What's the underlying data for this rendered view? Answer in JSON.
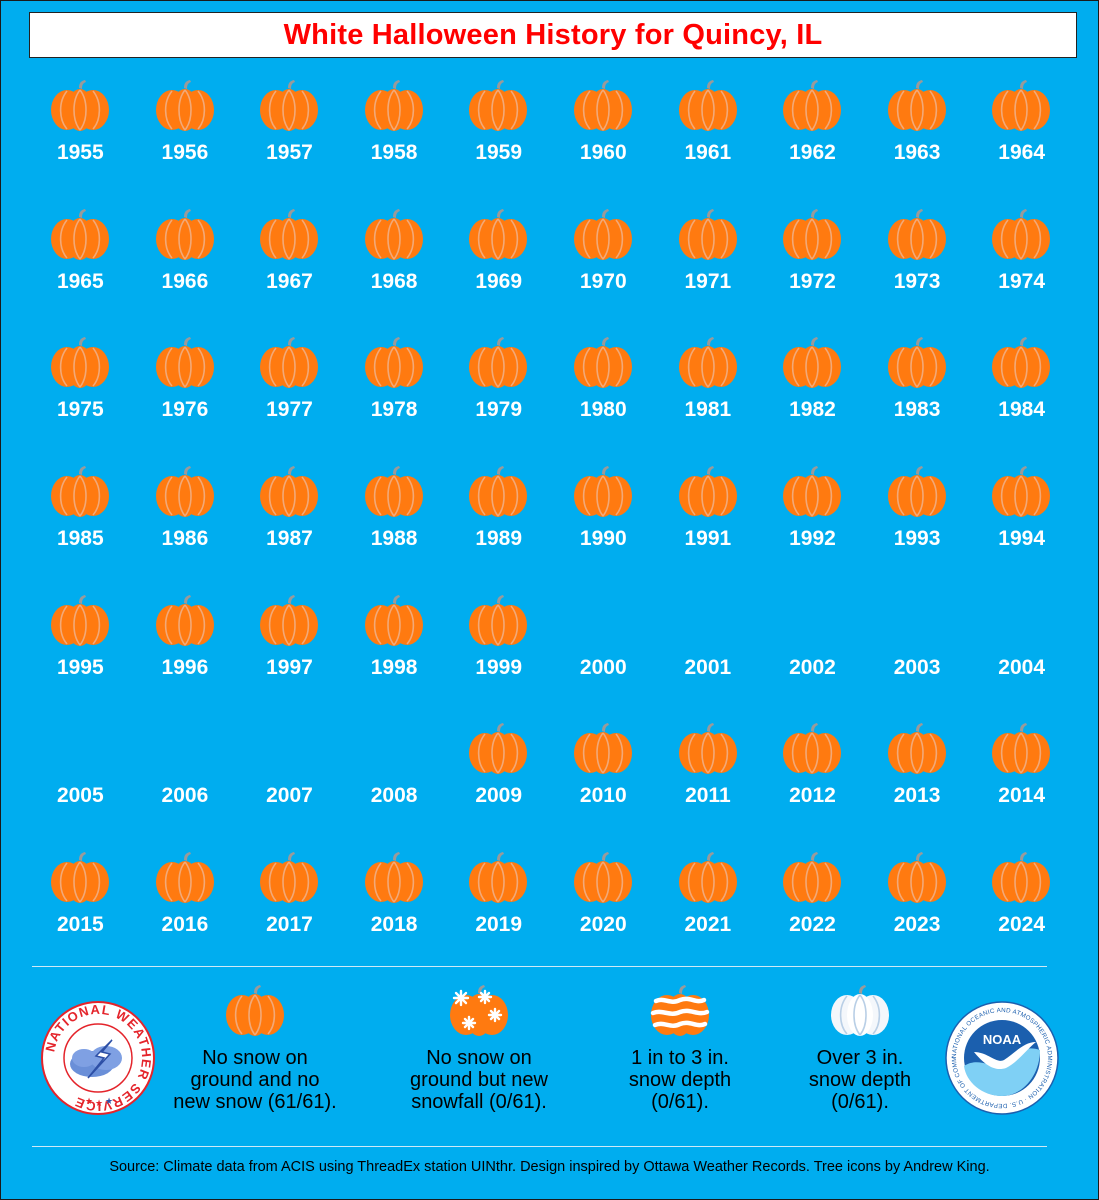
{
  "title": "White Halloween History for Quincy, IL",
  "years": [
    {
      "year": "1955",
      "pumpkin": true
    },
    {
      "year": "1956",
      "pumpkin": true
    },
    {
      "year": "1957",
      "pumpkin": true
    },
    {
      "year": "1958",
      "pumpkin": true
    },
    {
      "year": "1959",
      "pumpkin": true
    },
    {
      "year": "1960",
      "pumpkin": true
    },
    {
      "year": "1961",
      "pumpkin": true
    },
    {
      "year": "1962",
      "pumpkin": true
    },
    {
      "year": "1963",
      "pumpkin": true
    },
    {
      "year": "1964",
      "pumpkin": true
    },
    {
      "year": "1965",
      "pumpkin": true
    },
    {
      "year": "1966",
      "pumpkin": true
    },
    {
      "year": "1967",
      "pumpkin": true
    },
    {
      "year": "1968",
      "pumpkin": true
    },
    {
      "year": "1969",
      "pumpkin": true
    },
    {
      "year": "1970",
      "pumpkin": true
    },
    {
      "year": "1971",
      "pumpkin": true
    },
    {
      "year": "1972",
      "pumpkin": true
    },
    {
      "year": "1973",
      "pumpkin": true
    },
    {
      "year": "1974",
      "pumpkin": true
    },
    {
      "year": "1975",
      "pumpkin": true
    },
    {
      "year": "1976",
      "pumpkin": true
    },
    {
      "year": "1977",
      "pumpkin": true
    },
    {
      "year": "1978",
      "pumpkin": true
    },
    {
      "year": "1979",
      "pumpkin": true
    },
    {
      "year": "1980",
      "pumpkin": true
    },
    {
      "year": "1981",
      "pumpkin": true
    },
    {
      "year": "1982",
      "pumpkin": true
    },
    {
      "year": "1983",
      "pumpkin": true
    },
    {
      "year": "1984",
      "pumpkin": true
    },
    {
      "year": "1985",
      "pumpkin": true
    },
    {
      "year": "1986",
      "pumpkin": true
    },
    {
      "year": "1987",
      "pumpkin": true
    },
    {
      "year": "1988",
      "pumpkin": true
    },
    {
      "year": "1989",
      "pumpkin": true
    },
    {
      "year": "1990",
      "pumpkin": true
    },
    {
      "year": "1991",
      "pumpkin": true
    },
    {
      "year": "1992",
      "pumpkin": true
    },
    {
      "year": "1993",
      "pumpkin": true
    },
    {
      "year": "1994",
      "pumpkin": true
    },
    {
      "year": "1995",
      "pumpkin": true
    },
    {
      "year": "1996",
      "pumpkin": true
    },
    {
      "year": "1997",
      "pumpkin": true
    },
    {
      "year": "1998",
      "pumpkin": true
    },
    {
      "year": "1999",
      "pumpkin": true
    },
    {
      "year": "2000",
      "pumpkin": false
    },
    {
      "year": "2001",
      "pumpkin": false
    },
    {
      "year": "2002",
      "pumpkin": false
    },
    {
      "year": "2003",
      "pumpkin": false
    },
    {
      "year": "2004",
      "pumpkin": false
    },
    {
      "year": "2005",
      "pumpkin": false
    },
    {
      "year": "2006",
      "pumpkin": false
    },
    {
      "year": "2007",
      "pumpkin": false
    },
    {
      "year": "2008",
      "pumpkin": false
    },
    {
      "year": "2009",
      "pumpkin": true
    },
    {
      "year": "2010",
      "pumpkin": true
    },
    {
      "year": "2011",
      "pumpkin": true
    },
    {
      "year": "2012",
      "pumpkin": true
    },
    {
      "year": "2013",
      "pumpkin": true
    },
    {
      "year": "2014",
      "pumpkin": true
    },
    {
      "year": "2015",
      "pumpkin": true
    },
    {
      "year": "2016",
      "pumpkin": true
    },
    {
      "year": "2017",
      "pumpkin": true
    },
    {
      "year": "2018",
      "pumpkin": true
    },
    {
      "year": "2019",
      "pumpkin": true
    },
    {
      "year": "2020",
      "pumpkin": true
    },
    {
      "year": "2021",
      "pumpkin": true
    },
    {
      "year": "2022",
      "pumpkin": true
    },
    {
      "year": "2023",
      "pumpkin": true
    },
    {
      "year": "2024",
      "pumpkin": true
    }
  ],
  "legend": [
    {
      "icon": "pumpkin-icon",
      "line1": "No snow on",
      "line2": "ground and no",
      "line3": "new snow (61/61)."
    },
    {
      "icon": "snowflake-pumpkin-icon",
      "line1": "No snow on",
      "line2": "ground but new",
      "line3": "snowfall (0/61)."
    },
    {
      "icon": "striped-snow-pumpkin-icon",
      "line1": "1 in to 3 in.",
      "line2": "snow depth",
      "line3": "(0/61)."
    },
    {
      "icon": "white-pumpkin-icon",
      "line1": "Over 3 in.",
      "line2": "snow depth",
      "line3": "(0/61)."
    }
  ],
  "logos": {
    "nws_text": "NATIONAL WEATHER SERVICE",
    "noaa_text": "NOAA",
    "noaa_ring_text": "NATIONAL OCEANIC AND ATMOSPHERIC ADMINISTRATION · U.S. DEPARTMENT OF COMMERCE"
  },
  "source": "Source: Climate data from ACIS using ThreadEx station UINthr. Design inspired by Ottawa Weather Records. Tree icons by Andrew King.",
  "colors": {
    "background": "#00adef",
    "title": "#ff0000",
    "pumpkin": "#ff7a10",
    "pumpkin_rib": "#f2a978",
    "stem": "#9a9a9a"
  }
}
